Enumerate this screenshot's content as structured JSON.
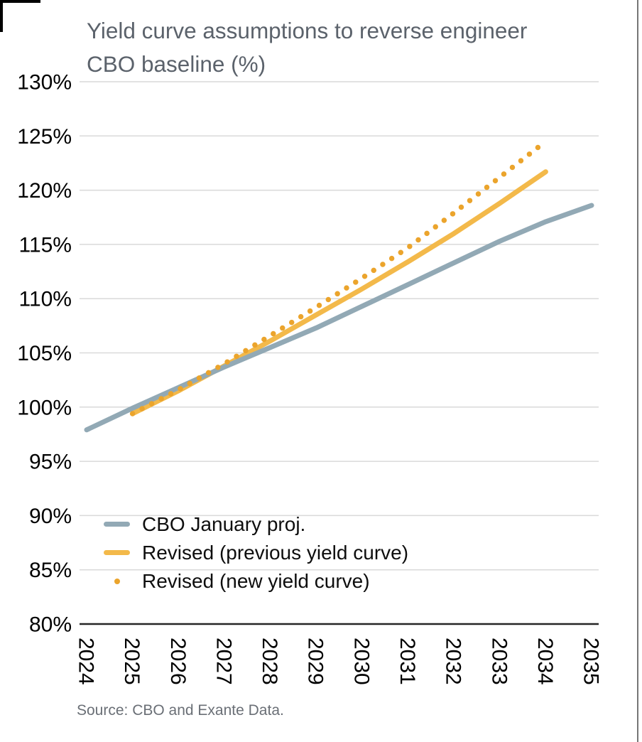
{
  "chart_data": {
    "type": "line",
    "title": "Yield curve assumptions to reverse engineer CBO baseline (%)",
    "title_lines": [
      "Yield curve assumptions to reverse engineer",
      "CBO baseline (%)"
    ],
    "source": "Source: CBO and Exante Data.",
    "categories": [
      2024,
      2025,
      2026,
      2027,
      2028,
      2029,
      2030,
      2031,
      2032,
      2033,
      2034,
      2035
    ],
    "x_tick_labels": [
      "2024",
      "2025",
      "2026",
      "2027",
      "2028",
      "2029",
      "2030",
      "2031",
      "2032",
      "2033",
      "2034",
      "2035"
    ],
    "y_tick_labels": [
      "130%",
      "125%",
      "120%",
      "115%",
      "110%",
      "105%",
      "100%",
      "95%",
      "90%",
      "85%",
      "80%"
    ],
    "ylim": [
      80,
      130
    ],
    "y_step": 5,
    "grid": "horizontal",
    "legend_position": "inside-bottom-left",
    "series": [
      {
        "name": "CBO January proj.",
        "style": "solid",
        "color": "#92a9b5",
        "x_start": 2024,
        "values": [
          97.9,
          99.9,
          101.8,
          103.7,
          105.5,
          107.3,
          109.3,
          111.3,
          113.3,
          115.3,
          117.1,
          118.6
        ]
      },
      {
        "name": "Revised (previous yield curve)",
        "style": "solid",
        "color": "#f3b94a",
        "x_start": 2025,
        "values": [
          99.4,
          101.5,
          103.8,
          106.1,
          108.5,
          110.9,
          113.4,
          116.0,
          118.8,
          121.7
        ]
      },
      {
        "name": "Revised (new yield curve)",
        "style": "dotted",
        "color": "#eba42c",
        "x_start": 2025,
        "values": [
          99.4,
          101.6,
          104.0,
          106.6,
          109.2,
          111.9,
          114.7,
          117.9,
          121.2,
          124.5
        ]
      }
    ],
    "colors": {
      "gridline": "#d9d9d9",
      "axis_line": "#262626",
      "tick_label": "#000000",
      "title": "#5b626b",
      "source": "#6a6f76"
    }
  }
}
